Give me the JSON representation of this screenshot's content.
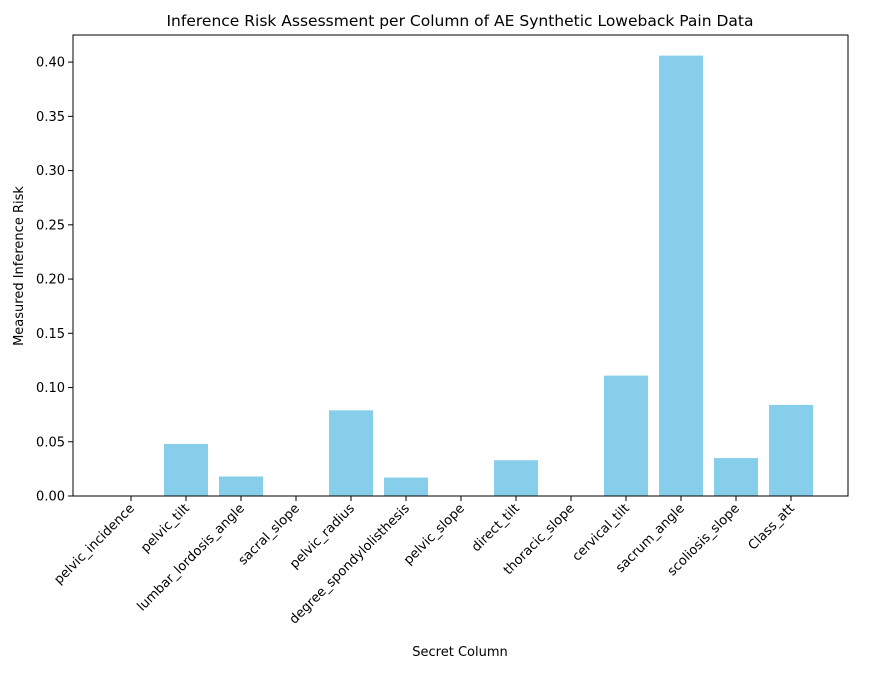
{
  "chart_data": {
    "type": "bar",
    "title": "Inference Risk Assessment per Column of AE Synthetic Loweback Pain Data",
    "xlabel": "Secret Column",
    "ylabel": "Measured Inference Risk",
    "ylim": [
      0,
      0.425
    ],
    "yticks": [
      "0.00",
      "0.05",
      "0.10",
      "0.15",
      "0.20",
      "0.25",
      "0.30",
      "0.35",
      "0.40"
    ],
    "grid": false,
    "bar_color": "#87CEEB",
    "categories": [
      "pelvic_incidence",
      "pelvic_tilt",
      "lumbar_lordosis_angle",
      "sacral_slope",
      "pelvic_radius",
      "degree_spondylolisthesis",
      "pelvic_slope",
      "direct_tilt",
      "thoracic_slope",
      "cervical_tilt",
      "sacrum_angle",
      "scoliosis_slope",
      "Class_att"
    ],
    "values": [
      0.0,
      0.048,
      0.018,
      0.0,
      0.079,
      0.017,
      0.0,
      0.033,
      0.0,
      0.111,
      0.406,
      0.035,
      0.084
    ]
  }
}
